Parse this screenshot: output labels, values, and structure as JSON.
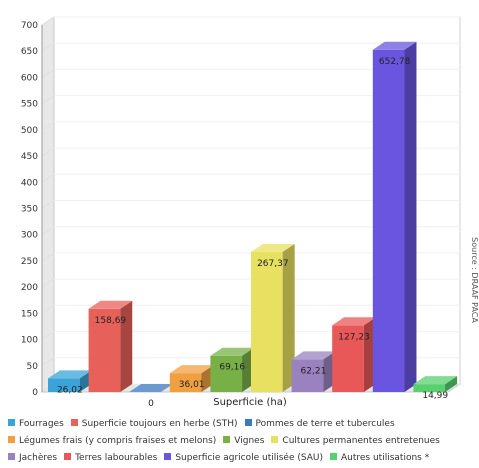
{
  "chart_data": {
    "type": "bar",
    "xlabel": "Superficie (ha)",
    "ylim": [
      0,
      700
    ],
    "yticks": [
      0,
      50,
      100,
      150,
      200,
      250,
      300,
      350,
      400,
      450,
      500,
      550,
      600,
      650,
      700
    ],
    "series": [
      {
        "name": "Fourrages",
        "value": 26.02,
        "label": "26,02",
        "color": "#3aa3d8"
      },
      {
        "name": "Superficie toujours en herbe (STH)",
        "value": 158.69,
        "label": "158,69",
        "color": "#e8605a"
      },
      {
        "name": "Pommes de terre et tubercules",
        "value": 0,
        "label": "0",
        "color": "#3a78c0"
      },
      {
        "name": "Légumes frais (y compris fraises et melons)",
        "value": 36.01,
        "label": "36,01",
        "color": "#f0a040"
      },
      {
        "name": "Vignes",
        "value": 69.16,
        "label": "69,16",
        "color": "#78b048"
      },
      {
        "name": "Cultures permanentes entretenues",
        "value": 267.37,
        "label": "267,37",
        "color": "#e8e060"
      },
      {
        "name": "Jachères",
        "value": 62.21,
        "label": "62,21",
        "color": "#9a82c0"
      },
      {
        "name": "Terres labourables",
        "value": 127.23,
        "label": "127,23",
        "color": "#e85858"
      },
      {
        "name": "Superficie agricole utilisée (SAU)",
        "value": 652.78,
        "label": "652,78",
        "color": "#6a55e0"
      },
      {
        "name": "Autres utilisations *",
        "value": 14.99,
        "label": "14,99",
        "color": "#58d070"
      }
    ],
    "legend_rows": [
      [
        0,
        1,
        2
      ],
      [
        3,
        4,
        5
      ],
      [
        6,
        7,
        8,
        9
      ]
    ],
    "source": "Source : DRAAF PACA"
  }
}
